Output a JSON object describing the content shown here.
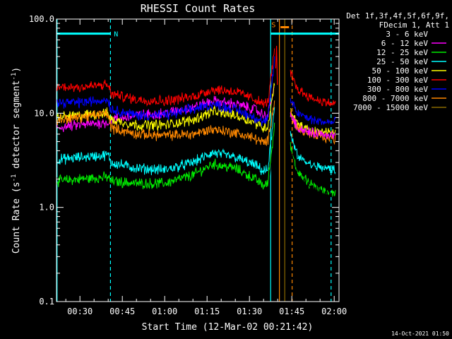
{
  "chart_data": {
    "type": "line",
    "title": "RHESSI Count Rates",
    "xlabel": "Start Time (12-Mar-02 00:21:42)",
    "ylabel_main": "Count Rate (s",
    "ylabel_sup": "-1",
    "ylabel_tail": " detector segment",
    "ylabel_end": ")",
    "y_scale": "log",
    "ylim": [
      0.1,
      100.0
    ],
    "xlim_minutes": [
      21.7,
      121.7
    ],
    "y_ticks": [
      {
        "value": 0.1,
        "label": "0.1"
      },
      {
        "value": 1.0,
        "label": "1.0"
      },
      {
        "value": 10.0,
        "label": "10.0"
      },
      {
        "value": 100.0,
        "label": "100.0"
      }
    ],
    "x_ticks": [
      {
        "minute": 30,
        "label": "00:30"
      },
      {
        "minute": 45,
        "label": "00:45"
      },
      {
        "minute": 60,
        "label": "01:00"
      },
      {
        "minute": 75,
        "label": "01:15"
      },
      {
        "minute": 90,
        "label": "01:30"
      },
      {
        "minute": 105,
        "label": "01:45"
      },
      {
        "minute": 120,
        "label": "02:00"
      }
    ],
    "legend_header": [
      "Det 1f,3f,4f,5f,6f,9f,",
      "FDecim 1, Att 1"
    ],
    "legend_position": "right",
    "series": [
      {
        "name": "3 - 6 keV",
        "color": "#000000",
        "x": [
          21.7,
          30,
          40,
          41,
          50,
          60,
          70,
          77,
          85,
          92,
          95,
          96.5,
          99
        ],
        "y": [
          1.9,
          2.0,
          2.1,
          1.8,
          1.5,
          1.45,
          2.0,
          2.6,
          2.3,
          1.7,
          1.4,
          1.5,
          7.0
        ]
      },
      {
        "name": "6 - 12 keV",
        "color": "#ff00ff",
        "x": [
          21.7,
          30,
          40,
          41,
          50,
          60,
          70,
          77,
          85,
          92,
          95,
          96.5,
          99
        ],
        "y": [
          7.0,
          7.5,
          8.0,
          8.5,
          9.5,
          10.0,
          11.5,
          13.5,
          12.5,
          11.0,
          9.5,
          9.5,
          20.0
        ]
      },
      {
        "name": "12 - 25 keV",
        "color": "#00ee00",
        "x": [
          21.7,
          30,
          40,
          41,
          50,
          60,
          70,
          77,
          85,
          92,
          95,
          96.5,
          99
        ],
        "y": [
          1.9,
          2.0,
          2.1,
          1.9,
          1.8,
          1.8,
          2.2,
          2.9,
          2.6,
          2.0,
          1.7,
          1.8,
          8.0
        ]
      },
      {
        "name": "25 - 50 keV",
        "color": "#00ffff",
        "x": [
          21.7,
          30,
          40,
          41,
          50,
          60,
          70,
          77,
          85,
          92,
          95,
          96.5,
          99
        ],
        "y": [
          3.2,
          3.4,
          3.6,
          3.0,
          2.6,
          2.5,
          3.0,
          3.8,
          3.4,
          2.8,
          2.4,
          2.5,
          12.0
        ]
      },
      {
        "name": "50 - 100 keV",
        "color": "#ffff00",
        "x": [
          21.7,
          30,
          40,
          41,
          50,
          60,
          70,
          77,
          85,
          92,
          95,
          96.5,
          99
        ],
        "y": [
          9.0,
          9.5,
          10.0,
          8.5,
          7.5,
          7.5,
          8.5,
          10.5,
          9.5,
          8.0,
          7.0,
          7.2,
          22.0
        ]
      },
      {
        "name": "100 - 300 keV",
        "color": "#ff0000",
        "x": [
          21.7,
          30,
          40,
          41,
          50,
          60,
          70,
          77,
          85,
          92,
          95,
          96.5,
          99
        ],
        "y": [
          19.0,
          19.0,
          20.0,
          16.0,
          14.0,
          13.5,
          15.0,
          18.0,
          17.0,
          14.0,
          12.5,
          13.0,
          50.0
        ]
      },
      {
        "name": "300 - 800 keV",
        "color": "#0000ff",
        "x": [
          21.7,
          30,
          40,
          41,
          50,
          60,
          70,
          77,
          85,
          92,
          95,
          96.5,
          99
        ],
        "y": [
          13.0,
          13.0,
          14.0,
          11.0,
          9.5,
          9.5,
          11.0,
          12.5,
          11.0,
          9.0,
          8.0,
          8.5,
          40.0
        ]
      },
      {
        "name": "800 - 7000 keV",
        "color": "#ff8800",
        "x": [
          21.7,
          30,
          40,
          41,
          50,
          60,
          70,
          77,
          85,
          92,
          95,
          96.5,
          99
        ],
        "y": [
          8.5,
          9.0,
          10.0,
          7.0,
          6.0,
          5.8,
          6.0,
          6.8,
          6.2,
          5.4,
          4.8,
          5.0,
          15.0
        ]
      },
      {
        "name": "7000 - 15000 keV",
        "color": "#8b6b00",
        "x": [],
        "y": []
      }
    ],
    "post_gap_series": [
      {
        "color": "#ff0000",
        "x": [
          104.5,
          107,
          112,
          117,
          120.5
        ],
        "y": [
          27.0,
          18.0,
          14.5,
          13.0,
          12.5
        ]
      },
      {
        "color": "#0000ff",
        "x": [
          104.5,
          107,
          112,
          117,
          120.5
        ],
        "y": [
          14.0,
          10.0,
          8.5,
          8.0,
          8.0
        ]
      },
      {
        "color": "#ffff00",
        "x": [
          104.5,
          107,
          112,
          117,
          120.5
        ],
        "y": [
          11.0,
          7.5,
          6.5,
          6.3,
          6.2
        ]
      },
      {
        "color": "#ff8800",
        "x": [
          104.5,
          107,
          112,
          117,
          120.5
        ],
        "y": [
          10.0,
          6.8,
          5.8,
          5.5,
          5.3
        ]
      },
      {
        "color": "#ff00ff",
        "x": [
          104.5,
          107,
          112,
          117,
          120.5
        ],
        "y": [
          10.0,
          7.0,
          6.2,
          6.0,
          5.8
        ]
      },
      {
        "color": "#00ffff",
        "x": [
          104.5,
          107,
          112,
          117,
          120.5
        ],
        "y": [
          6.0,
          3.5,
          2.8,
          2.6,
          2.5
        ]
      },
      {
        "color": "#00ee00",
        "x": [
          104.5,
          107,
          112,
          117,
          120.5
        ],
        "y": [
          4.5,
          2.3,
          1.7,
          1.5,
          1.4
        ]
      },
      {
        "color": "#000000",
        "x": [
          104.5,
          107,
          112,
          117,
          120.5
        ],
        "y": [
          4.0,
          2.1,
          1.6,
          1.4,
          1.3
        ]
      }
    ],
    "spike": {
      "color": "#ff0000",
      "x": [
        99.3,
        99.6,
        99.9
      ],
      "y": [
        30.0,
        52.0,
        20.0
      ]
    },
    "vlines": [
      {
        "minute": 21.9,
        "color": "#00ffff",
        "style": "solid"
      },
      {
        "minute": 40.8,
        "color": "#00ffff",
        "style": "dashed"
      },
      {
        "minute": 97.5,
        "color": "#00ffff",
        "style": "solid"
      },
      {
        "minute": 100.6,
        "color": "#ff8800",
        "style": "solid"
      },
      {
        "minute": 102.5,
        "color": "#8b6b00",
        "style": "solid"
      },
      {
        "minute": 105.1,
        "color": "#ff8800",
        "style": "dashed"
      },
      {
        "minute": 118.9,
        "color": "#00ffff",
        "style": "dashed"
      }
    ],
    "night_bars": [
      {
        "from": 21.7,
        "to": 40.8,
        "y": 70.0,
        "color": "#00ffff"
      },
      {
        "from": 97.5,
        "to": 121.7,
        "y": 70.0,
        "color": "#00ffff"
      }
    ],
    "saa_bar": {
      "from": 101.0,
      "to": 104.0,
      "y": 82.0,
      "color": "#ff8800"
    },
    "annotations": [
      {
        "text": "N",
        "minute": 42.0,
        "y": 70.0,
        "color": "#00ffff"
      },
      {
        "text": "S",
        "minute": 97.8,
        "y": 88.0,
        "color": "#ff8800"
      }
    ],
    "timestamp": "14-Oct-2021 01:50"
  }
}
